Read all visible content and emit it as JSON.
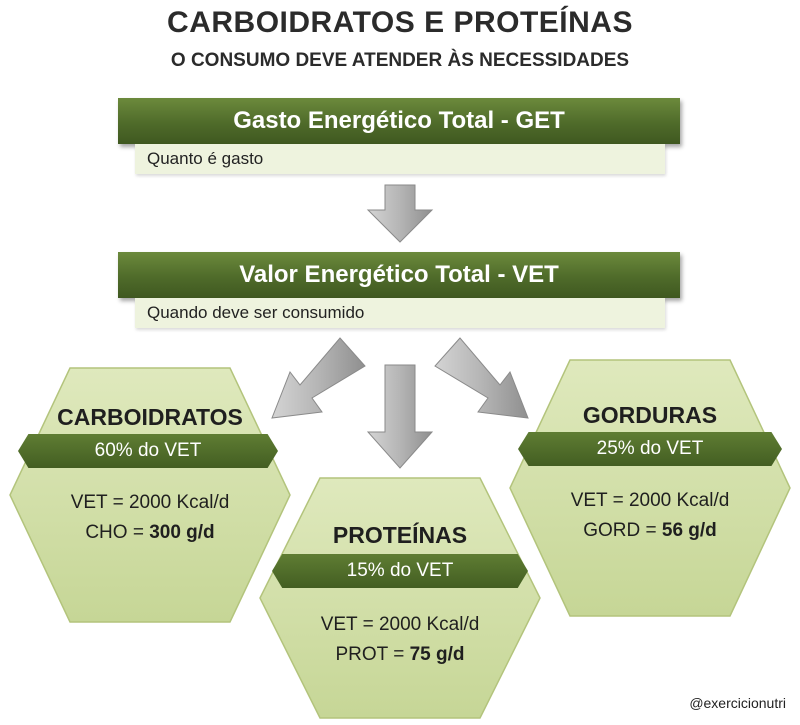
{
  "header": {
    "title": "CARBOIDRATOS E PROTEÍNAS",
    "subtitle": "O CONSUMO DEVE ATENDER ÀS NECESSIDADES"
  },
  "steps": [
    {
      "label": "Gasto Energético Total - GET",
      "description": "Quanto é gasto"
    },
    {
      "label": "Valor Energético Total - VET",
      "description": "Quando deve ser consumido"
    }
  ],
  "nutrients": {
    "carboidratos": {
      "name": "CARBOIDRATOS",
      "percent": "60% do VET",
      "vet_line": "VET = 2000 Kcal/d",
      "amount_label": "CHO = ",
      "amount_value": "300 g/d"
    },
    "proteinas": {
      "name": "PROTEÍNAS",
      "percent": "15% do VET",
      "vet_line": "VET = 2000 Kcal/d",
      "amount_label": "PROT = ",
      "amount_value": "75 g/d"
    },
    "gorduras": {
      "name": "GORDURAS",
      "percent": "25% do VET",
      "vet_line": "VET = 2000 Kcal/d",
      "amount_label": "GORD = ",
      "amount_value": "56 g/d"
    }
  },
  "footer": {
    "handle": "@exercicionutri"
  },
  "colors": {
    "dark_green": "#4f6b2a",
    "hex_green": "#d6e3b0",
    "light_green": "#eef3de",
    "arrow_gray": "#a8a8a8"
  }
}
